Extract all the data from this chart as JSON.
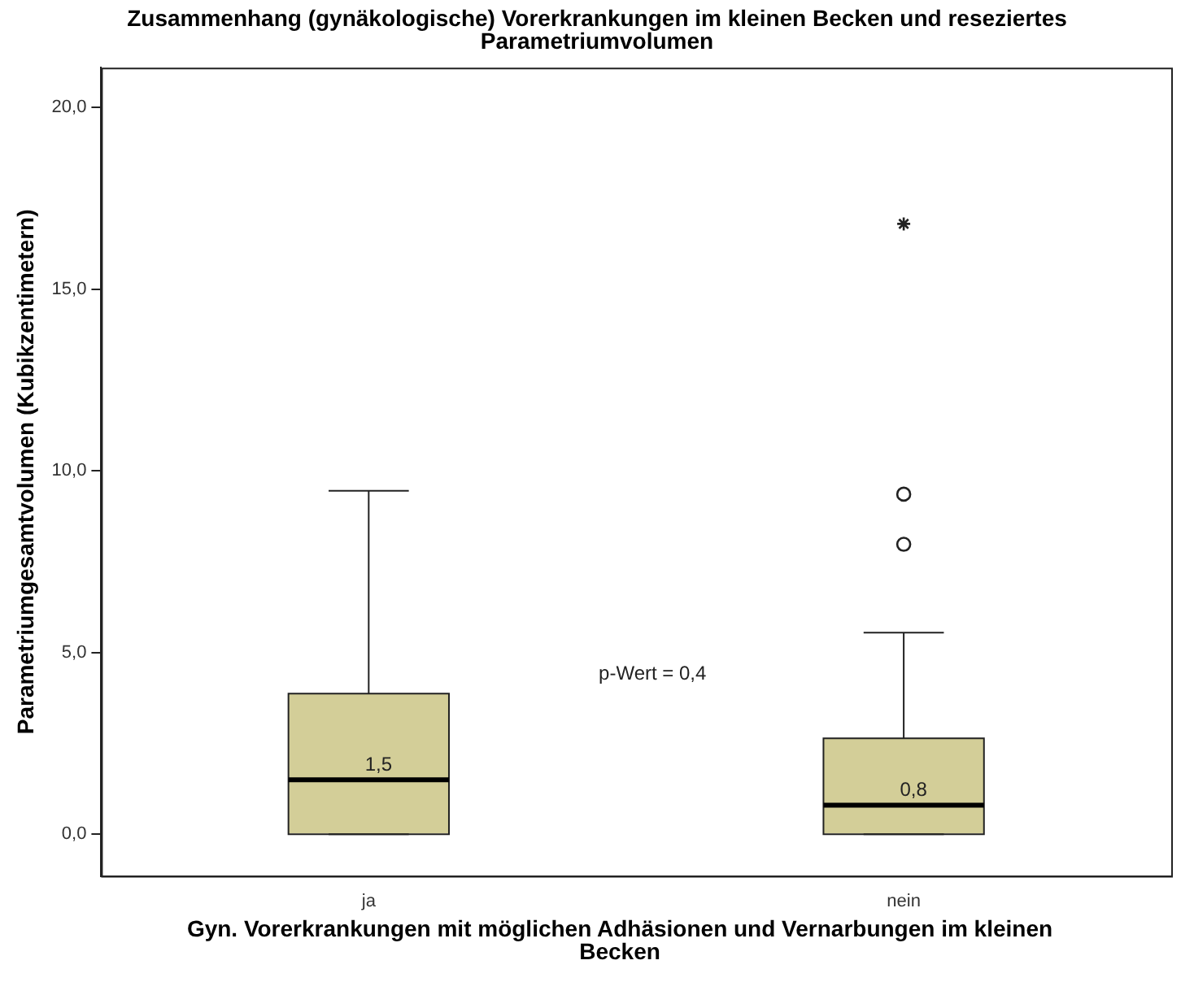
{
  "chart_data": {
    "type": "box",
    "title": "Zusammenhang (gynäkologische) Vorerkrankungen im kleinen Becken und reseziertes Parametriumvolumen",
    "xlabel": "Gyn. Vorerkrankungen mit möglichen Adhäsionen und Vernarbungen im kleinen Becken",
    "ylabel": "Parametriumgesamtvolumen (Kubikzentimetern)",
    "categories": [
      "ja",
      "nein"
    ],
    "boxes": [
      {
        "low": 0,
        "q1": 0,
        "median": 1.5,
        "q3": 3.87,
        "high": 9.45
      },
      {
        "low": 0,
        "q1": 0,
        "median": 0.8,
        "q3": 2.64,
        "high": 5.55,
        "outliers": [
          7.98,
          9.36,
          16.8
        ]
      }
    ],
    "color": "#d3ce98",
    "ylim": [
      -1.15,
      21.1
    ],
    "yticks": [
      {
        "value": 0,
        "label": "0,0"
      },
      {
        "value": 5,
        "label": "5,0"
      },
      {
        "value": 10,
        "label": "10,0"
      },
      {
        "value": 15,
        "label": "15,0"
      },
      {
        "value": 20,
        "label": "20,0"
      }
    ],
    "annotations": [
      {
        "text": "1,5",
        "x": "ja",
        "y": 1.5
      },
      {
        "text": "0,8",
        "x": "nein",
        "y": 0.8
      },
      "p-Wert = 0,4"
    ],
    "grid": false,
    "legend": false
  }
}
